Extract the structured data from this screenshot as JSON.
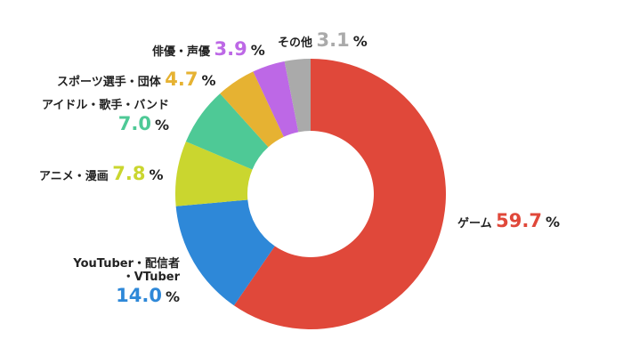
{
  "chart_data": {
    "type": "pie",
    "donut": true,
    "start": "top, clockwise",
    "unit": "%",
    "slices": [
      {
        "label": "ゲーム",
        "value": 59.7,
        "color": "#e0483a"
      },
      {
        "label": "YouTuber・配信者・VTuber",
        "value": 14.0,
        "color": "#2e88d8"
      },
      {
        "label": "アニメ・漫画",
        "value": 7.8,
        "color": "#cad62f"
      },
      {
        "label": "アイドル・歌手・バンド",
        "value": 7.0,
        "color": "#4ec996"
      },
      {
        "label": "スポーツ選手・団体",
        "value": 4.7,
        "color": "#e6b232"
      },
      {
        "label": "俳優・声優",
        "value": 3.9,
        "color": "#bd68e6"
      },
      {
        "label": "その他",
        "value": 3.1,
        "color": "#aaaaaa"
      }
    ],
    "value_text": [
      "59.7",
      "14.0",
      "7.8",
      "7.0",
      "4.7",
      "3.9",
      "3.1"
    ],
    "label_lines": {
      "youtuber_1": "YouTuber・配信者",
      "youtuber_2": "・VTuber"
    },
    "legend": "labels beside slices"
  }
}
